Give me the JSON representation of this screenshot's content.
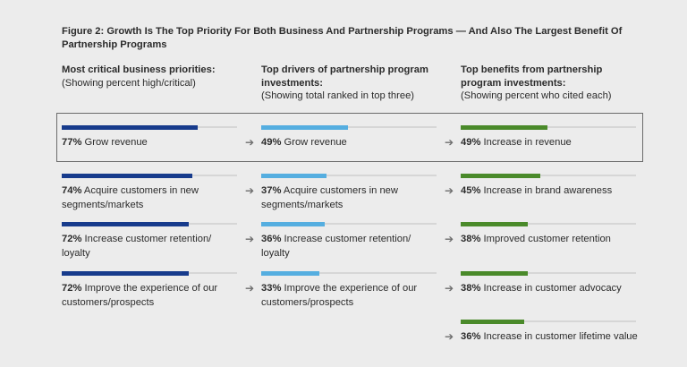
{
  "figure_title": "Figure 2: Growth Is The Top Priority For Both Business And Partnership Programs — And Also The Largest Benefit Of Partnership Programs",
  "colors": {
    "business": "#173b8c",
    "drivers": "#55aee0",
    "benefits": "#4a8a2a",
    "track": "#d6d6d6"
  },
  "chart_data": {
    "type": "bar",
    "title": "Figure 2: Growth Is The Top Priority For Both Business And Partnership Programs — And Also The Largest Benefit Of Partnership Programs",
    "xlim": [
      0,
      100
    ],
    "panels": [
      {
        "key": "business",
        "heading": "Most critical business priorities:",
        "subheading": "(Showing percent high/critical)",
        "items": [
          {
            "pct": 77,
            "pct_label": "77%",
            "label": "Grow revenue"
          },
          {
            "pct": 74,
            "pct_label": "74%",
            "label": "Acquire customers in new segments/markets"
          },
          {
            "pct": 72,
            "pct_label": "72%",
            "label": "Increase customer retention/ loyalty"
          },
          {
            "pct": 72,
            "pct_label": "72%",
            "label": "Improve the experience of our customers/prospects"
          }
        ]
      },
      {
        "key": "drivers",
        "heading": "Top drivers of partnership program investments:",
        "subheading": "(Showing total ranked in top three)",
        "items": [
          {
            "pct": 49,
            "pct_label": "49%",
            "label": "Grow revenue"
          },
          {
            "pct": 37,
            "pct_label": "37%",
            "label": "Acquire customers in new segments/markets"
          },
          {
            "pct": 36,
            "pct_label": "36%",
            "label": "Increase customer retention/ loyalty"
          },
          {
            "pct": 33,
            "pct_label": "33%",
            "label": "Improve the experience of our customers/prospects"
          }
        ]
      },
      {
        "key": "benefits",
        "heading": "Top benefits from partnership program investments:",
        "subheading": "(Showing percent who cited each)",
        "items": [
          {
            "pct": 49,
            "pct_label": "49%",
            "label": "Increase in revenue"
          },
          {
            "pct": 45,
            "pct_label": "45%",
            "label": "Increase in brand awareness"
          },
          {
            "pct": 38,
            "pct_label": "38%",
            "label": "Improved customer retention"
          },
          {
            "pct": 38,
            "pct_label": "38%",
            "label": "Increase in customer advocacy"
          },
          {
            "pct": 36,
            "pct_label": "36%",
            "label": "Increase in customer lifetime value"
          }
        ]
      }
    ]
  }
}
